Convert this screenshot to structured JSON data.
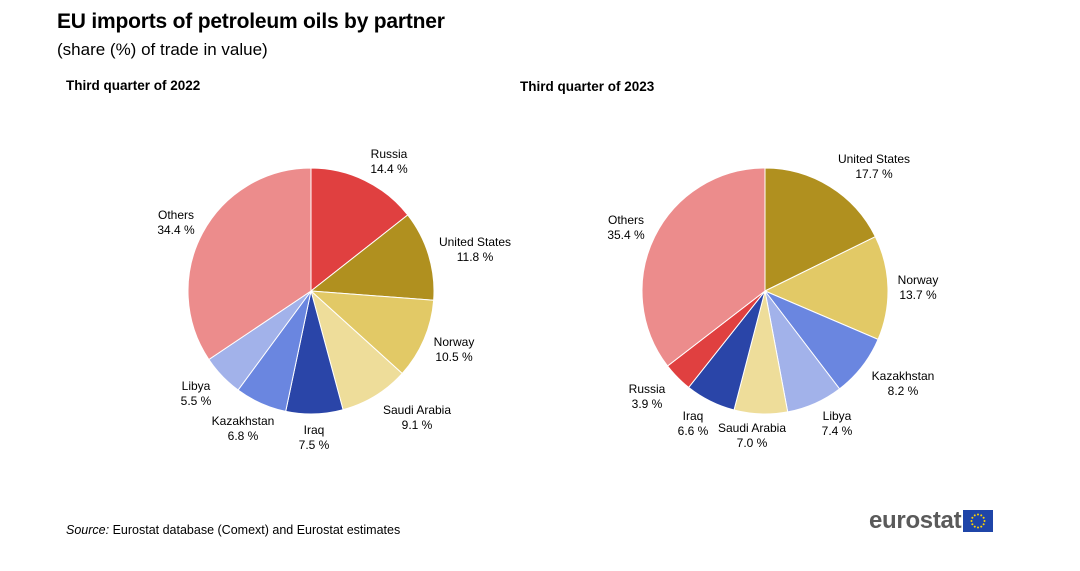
{
  "title": "EU imports of petroleum oils by partner",
  "subtitle": "(share (%) of trade in value)",
  "source": {
    "label": "Source:",
    "text": "Eurostat database (Comext) and Eurostat estimates"
  },
  "logo": {
    "text": "eurostat",
    "flag_icon": "eu-flag-icon"
  },
  "chart_data": [
    {
      "type": "pie",
      "title": "Third quarter of 2022",
      "unit": "%",
      "slices": [
        {
          "label": "Russia",
          "value": 14.4,
          "value_label": "14.4 %",
          "color": "#e04040"
        },
        {
          "label": "United States",
          "value": 11.8,
          "value_label": "11.8 %",
          "color": "#b0901f"
        },
        {
          "label": "Norway",
          "value": 10.5,
          "value_label": "10.5 %",
          "color": "#e2c966"
        },
        {
          "label": "Saudi Arabia",
          "value": 9.1,
          "value_label": "9.1 %",
          "color": "#eedd9a"
        },
        {
          "label": "Iraq",
          "value": 7.5,
          "value_label": "7.5 %",
          "color": "#2a45a8"
        },
        {
          "label": "Kazakhstan",
          "value": 6.8,
          "value_label": "6.8 %",
          "color": "#6a86e0"
        },
        {
          "label": "Libya",
          "value": 5.5,
          "value_label": "5.5 %",
          "color": "#a2b2ea"
        },
        {
          "label": "Others",
          "value": 34.4,
          "value_label": "34.4 %",
          "color": "#ec8c8c"
        }
      ]
    },
    {
      "type": "pie",
      "title": "Third quarter of 2023",
      "unit": "%",
      "slices": [
        {
          "label": "United States",
          "value": 17.7,
          "value_label": "17.7 %",
          "color": "#b0901f"
        },
        {
          "label": "Norway",
          "value": 13.7,
          "value_label": "13.7 %",
          "color": "#e2c966"
        },
        {
          "label": "Kazakhstan",
          "value": 8.2,
          "value_label": "8.2 %",
          "color": "#6a86e0"
        },
        {
          "label": "Libya",
          "value": 7.4,
          "value_label": "7.4 %",
          "color": "#a2b2ea"
        },
        {
          "label": "Saudi Arabia",
          "value": 7.0,
          "value_label": "7.0 %",
          "color": "#eedd9a"
        },
        {
          "label": "Iraq",
          "value": 6.6,
          "value_label": "6.6 %",
          "color": "#2a45a8"
        },
        {
          "label": "Russia",
          "value": 3.9,
          "value_label": "3.9 %",
          "color": "#e04040"
        },
        {
          "label": "Others",
          "value": 35.4,
          "value_label": "35.4 %",
          "color": "#ec8c8c"
        }
      ]
    }
  ]
}
